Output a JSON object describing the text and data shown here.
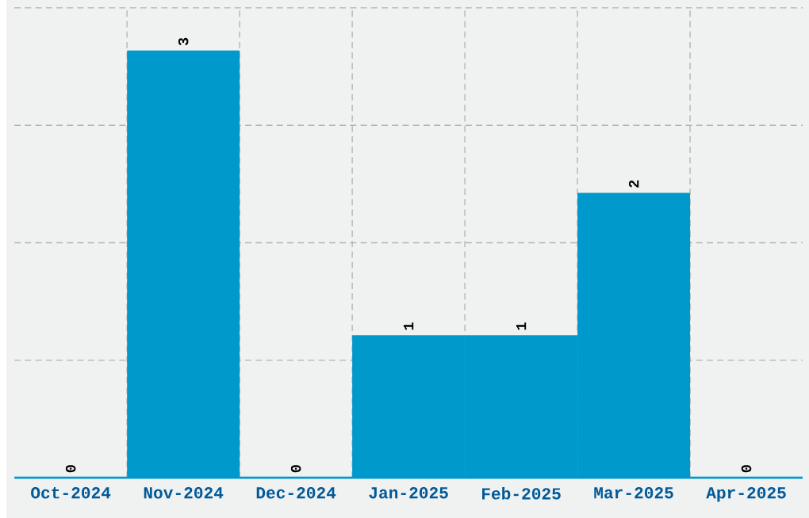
{
  "chart_data": {
    "type": "bar",
    "categories": [
      "Oct-2024",
      "Nov-2024",
      "Dec-2024",
      "Jan-2025",
      "Feb-2025",
      "Mar-2025",
      "Apr-2025"
    ],
    "values": [
      0,
      3,
      0,
      1,
      1,
      2,
      0
    ],
    "color": "#0099cc",
    "ylim": [
      0,
      3.3
    ],
    "yticks": [
      {
        "value": 0,
        "label": null
      },
      {
        "value": 0.825,
        "label": null
      },
      {
        "value": 1.65,
        "label": null
      },
      {
        "value": 2.475,
        "label": null
      },
      {
        "value": 3.3,
        "label": null
      }
    ],
    "tick_labels": "x",
    "grid": true,
    "data_labels": true
  }
}
